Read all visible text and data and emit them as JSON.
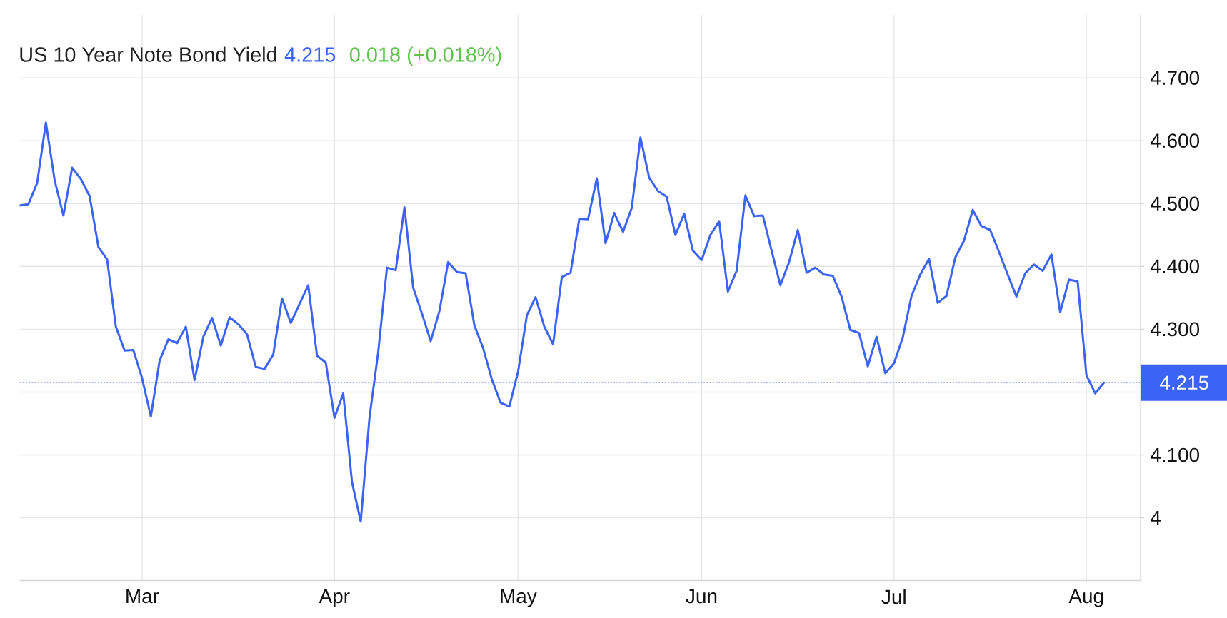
{
  "chart_data": {
    "type": "line",
    "title": "US 10 Year Note Bond Yield",
    "annotations": [
      "4.215",
      "0.018 (+0.018%)"
    ],
    "categories": [
      null,
      null,
      null,
      null,
      null,
      null,
      null,
      null,
      null,
      null,
      null,
      null,
      null,
      null,
      "Mar",
      null,
      null,
      null,
      null,
      null,
      null,
      null,
      null,
      null,
      null,
      null,
      null,
      null,
      null,
      null,
      null,
      null,
      null,
      null,
      null,
      null,
      "Apr",
      null,
      null,
      null,
      null,
      null,
      null,
      null,
      null,
      null,
      null,
      null,
      null,
      null,
      null,
      null,
      null,
      null,
      null,
      null,
      null,
      "May",
      null,
      null,
      null,
      null,
      null,
      null,
      null,
      null,
      null,
      null,
      null,
      null,
      null,
      null,
      null,
      null,
      null,
      null,
      null,
      null,
      "Jun",
      null,
      null,
      null,
      null,
      null,
      null,
      null,
      null,
      null,
      null,
      null,
      null,
      null,
      null,
      null,
      null,
      null,
      null,
      null,
      null,
      null,
      "Jul",
      null,
      null,
      null,
      null,
      null,
      null,
      null,
      null,
      null,
      null,
      null,
      null,
      null,
      null,
      null,
      null,
      null,
      null,
      null,
      null,
      null,
      "Aug",
      null,
      null
    ],
    "series": [
      {
        "color": "#3c64f4",
        "values": [
          4.497,
          4.499,
          4.533,
          4.629,
          4.537,
          4.481,
          4.557,
          4.539,
          4.512,
          4.431,
          4.411,
          4.304,
          4.266,
          4.267,
          4.222,
          4.161,
          4.25,
          4.284,
          4.278,
          4.304,
          4.219,
          4.288,
          4.318,
          4.274,
          4.319,
          4.308,
          4.292,
          4.24,
          4.237,
          4.26,
          4.349,
          4.31,
          4.34,
          4.37,
          4.258,
          4.247,
          4.159,
          4.198,
          4.057,
          3.994,
          4.159,
          4.264,
          4.398,
          4.394,
          4.494,
          4.366,
          4.325,
          4.281,
          4.329,
          4.407,
          4.391,
          4.389,
          4.306,
          4.27,
          4.22,
          4.183,
          4.177,
          4.233,
          4.322,
          4.351,
          4.304,
          4.276,
          4.383,
          4.39,
          4.476,
          4.475,
          4.54,
          4.437,
          4.485,
          4.455,
          4.493,
          4.605,
          4.541,
          4.52,
          4.511,
          4.45,
          4.484,
          4.425,
          4.41,
          4.45,
          4.472,
          4.36,
          4.393,
          4.513,
          4.48,
          4.481,
          4.425,
          4.37,
          4.407,
          4.458,
          4.39,
          4.398,
          4.387,
          4.385,
          4.352,
          4.299,
          4.294,
          4.241,
          4.288,
          4.23,
          4.246,
          4.287,
          4.353,
          4.387,
          4.412,
          4.342,
          4.353,
          4.414,
          4.441,
          4.49,
          4.464,
          4.458,
          4.423,
          4.387,
          4.352,
          4.389,
          4.403,
          4.393,
          4.419,
          4.327,
          4.379,
          4.376,
          4.227,
          4.198,
          4.215
        ]
      }
    ],
    "ylim": [
      3.9,
      4.8
    ],
    "yticks": [
      4,
      {
        "value": 4.1,
        "label": "4.100"
      },
      {
        "value": 4.2,
        "label": null
      },
      {
        "value": 4.3,
        "label": "4.300"
      },
      {
        "value": 4.4,
        "label": "4.400"
      },
      {
        "value": 4.5,
        "label": "4.500"
      },
      {
        "value": 4.6,
        "label": "4.600"
      },
      {
        "value": 4.7,
        "label": "4.700"
      }
    ],
    "grid": true,
    "ref_lines": [
      {
        "axis": "y",
        "value": 4.215,
        "label": "4.215",
        "color": "#3c64f4",
        "line_style": "dotted"
      }
    ]
  }
}
